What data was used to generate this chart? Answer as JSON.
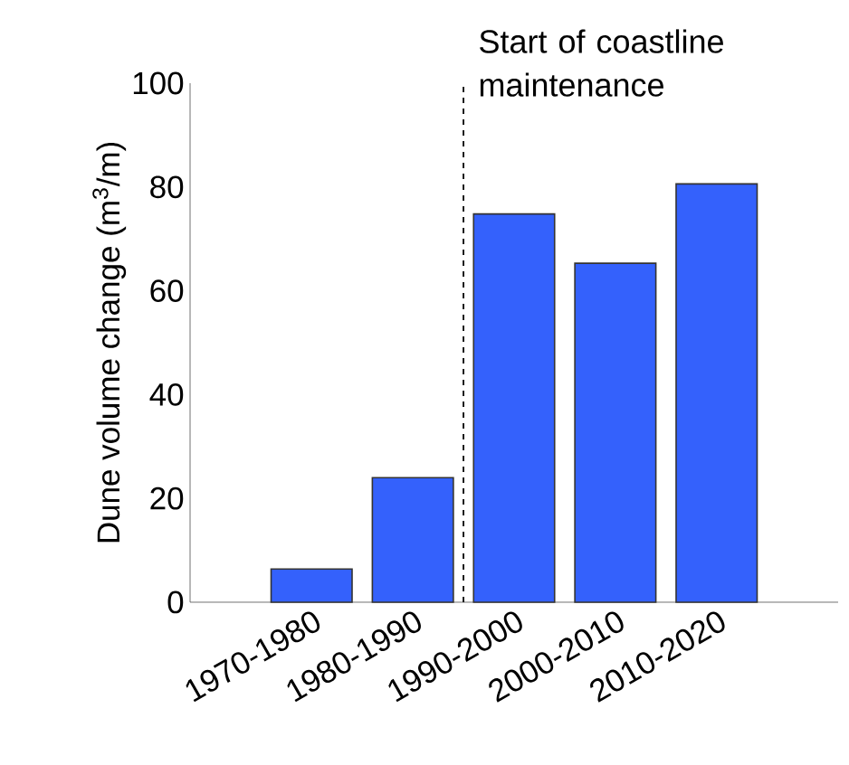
{
  "chart_data": {
    "type": "bar",
    "ylabel": "Dune volume change (m$^{3}$/m)",
    "categories": [
      "1970-1980",
      "1980-1990",
      "1990-2000",
      "2000-2010",
      "2010-2020"
    ],
    "values": [
      6.4,
      24,
      74.8,
      65.3,
      80.6
    ],
    "color": "#3461fc",
    "ylim": [
      0,
      100
    ],
    "yticks": [
      0,
      20,
      40,
      60,
      80,
      100
    ],
    "annotations": [
      "Start of coastline maintenance"
    ]
  }
}
